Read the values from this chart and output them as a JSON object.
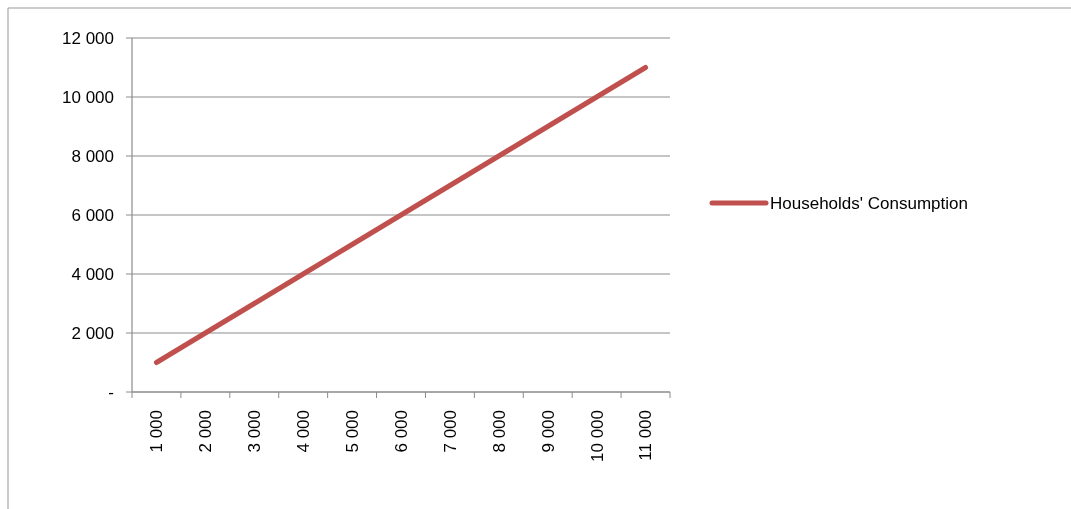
{
  "chart_data": {
    "type": "line",
    "categories": [
      "1 000",
      "2 000",
      "3 000",
      "4 000",
      "5 000",
      "6 000",
      "7 000",
      "8 000",
      "9 000",
      "10 000",
      "11 000"
    ],
    "series": [
      {
        "name": "Households' Consumption",
        "color": "#c0504d",
        "values": [
          1000,
          2000,
          3000,
          4000,
          5000,
          6000,
          7000,
          8000,
          9000,
          10000,
          11000
        ]
      }
    ],
    "ylim": [
      0,
      12000
    ],
    "yticks": [
      {
        "value": 0,
        "label": "-"
      },
      {
        "value": 2000,
        "label": "2 000"
      },
      {
        "value": 4000,
        "label": "4 000"
      },
      {
        "value": 6000,
        "label": "6 000"
      },
      {
        "value": 8000,
        "label": "8 000"
      },
      {
        "value": 10000,
        "label": "10 000"
      },
      {
        "value": 12000,
        "label": "12 000"
      }
    ],
    "grid": "y",
    "legend": "right",
    "marker": "none",
    "line_style": "solid"
  }
}
